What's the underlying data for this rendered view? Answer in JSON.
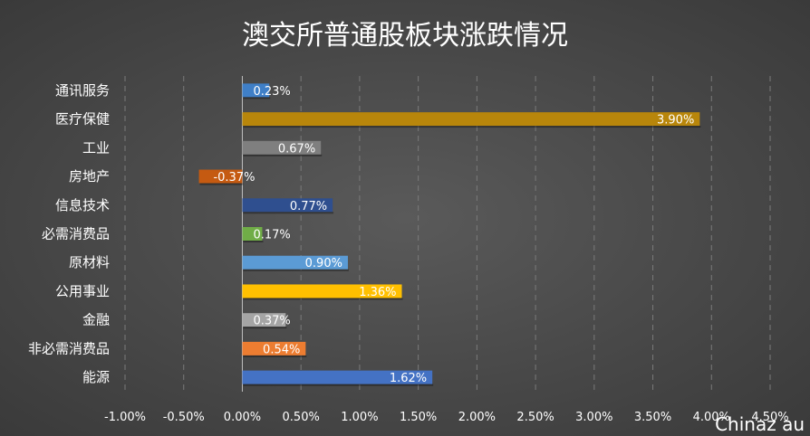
{
  "watermark": "Chinaz au",
  "chart_data": {
    "type": "bar",
    "orientation": "horizontal",
    "title": "澳交所普通股板块涨跌情况",
    "xlabel": "",
    "ylabel": "",
    "categories": [
      "通讯服务",
      "医疗保健",
      "工业",
      "房地产",
      "信息技术",
      "必需消费品",
      "原材料",
      "公用事业",
      "金融",
      "非必需消费品",
      "能源"
    ],
    "values": [
      0.23,
      3.9,
      0.67,
      -0.37,
      0.77,
      0.17,
      0.9,
      1.36,
      0.37,
      0.54,
      1.62
    ],
    "value_labels": [
      "0.23%",
      "3.90%",
      "0.67%",
      "-0.37%",
      "0.77%",
      "0.17%",
      "0.90%",
      "1.36%",
      "0.37%",
      "0.54%",
      "1.62%"
    ],
    "colors": [
      "#3f7fc7",
      "#b8860b",
      "#7f7f7f",
      "#c55a11",
      "#2f4f8f",
      "#70ad47",
      "#5b9bd5",
      "#ffc000",
      "#a5a5a5",
      "#ed7d31",
      "#4472c4"
    ],
    "xlim": [
      -1.0,
      4.5
    ],
    "x_ticks": [
      -1.0,
      -0.5,
      0.0,
      0.5,
      1.0,
      1.5,
      2.0,
      2.5,
      3.0,
      3.5,
      4.0,
      4.5
    ],
    "x_tick_labels": [
      "-1.00%",
      "-0.50%",
      "0.00%",
      "0.50%",
      "1.00%",
      "1.50%",
      "2.00%",
      "2.50%",
      "3.00%",
      "3.50%",
      "4.00%",
      "4.50%"
    ],
    "grid": true,
    "grid_style": "dashed vertical",
    "legend": "none"
  }
}
